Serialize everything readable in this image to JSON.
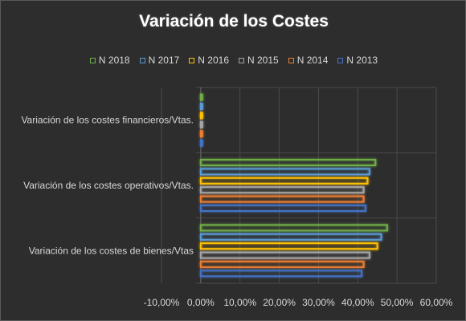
{
  "chart_data": {
    "type": "bar",
    "orientation": "horizontal",
    "title": "Variación de los Costes",
    "categories": [
      "Variación de los costes financieros/Vtas.",
      "Variación de los costes operativos/Vtas.",
      "Variación de los costes de bienes/Vtas"
    ],
    "series": [
      {
        "name": "N 2018",
        "color": "#70ad47",
        "values": [
          0.0,
          44.5,
          47.5
        ]
      },
      {
        "name": "N 2017",
        "color": "#5b9bd5",
        "values": [
          0.0,
          43.0,
          46.0
        ]
      },
      {
        "name": "N 2016",
        "color": "#ffc000",
        "values": [
          0.0,
          42.5,
          45.0
        ]
      },
      {
        "name": "N 2015",
        "color": "#a5a5a5",
        "values": [
          0.0,
          41.5,
          43.0
        ]
      },
      {
        "name": "N 2014",
        "color": "#ed7d31",
        "values": [
          0.0,
          41.5,
          41.5
        ]
      },
      {
        "name": "N 2013",
        "color": "#4472c4",
        "values": [
          0.0,
          42.0,
          41.0
        ]
      }
    ],
    "xlim": [
      -10,
      60
    ],
    "xticks": [
      "-10,00%",
      "0,00%",
      "10,00%",
      "20,00%",
      "30,00%",
      "40,00%",
      "50,00%",
      "60,00%"
    ],
    "grid": true,
    "legend_position": "top"
  }
}
